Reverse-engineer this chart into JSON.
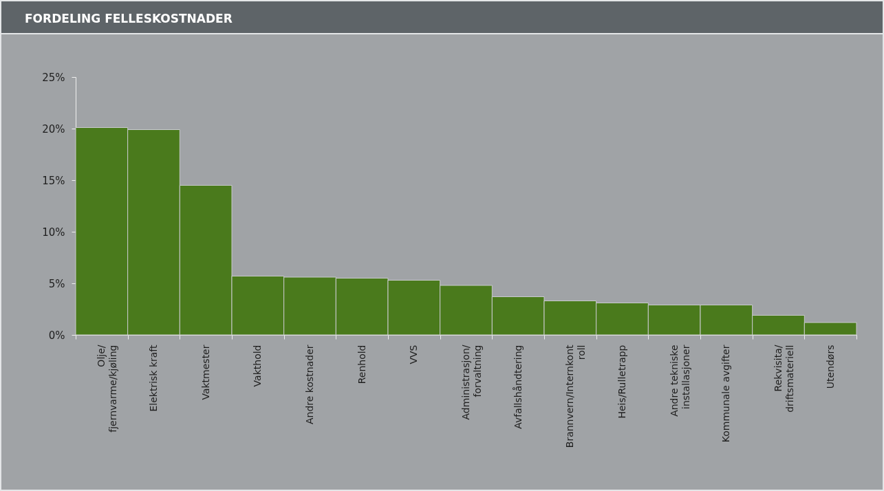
{
  "chart_data": {
    "type": "bar",
    "title": "FORDELING FELLESKOSTNADER",
    "categories": [
      "Olje/\nfjernvarme/kjøling",
      "Elektrisk kraft",
      "Vaktmester",
      "Vakthold",
      "Andre kostnader",
      "Renhold",
      "VVS",
      "Administrasjon/\nforvaltning",
      "Avfallshåndtering",
      "Brannvern/Internkont\nroll",
      "Heis/Rulletrapp",
      "Andre tekniske\ninstallasjoner",
      "Kommunale avgifter",
      "Rekvisita/\ndriftsmateriell",
      "Utendørs"
    ],
    "values": [
      20.1,
      19.9,
      14.5,
      5.7,
      5.6,
      5.5,
      5.3,
      4.8,
      3.7,
      3.3,
      3.1,
      2.9,
      2.9,
      1.9,
      1.2
    ],
    "color": "#4a7a1c",
    "ylim": [
      0,
      25
    ],
    "yticks": [
      {
        "value": 0,
        "label": "0%"
      },
      {
        "value": 5,
        "label": "5%"
      },
      {
        "value": 10,
        "label": "10%"
      },
      {
        "value": 15,
        "label": "15%"
      },
      {
        "value": 20,
        "label": "20%"
      },
      {
        "value": 25,
        "label": "25%"
      }
    ],
    "grid": false
  }
}
